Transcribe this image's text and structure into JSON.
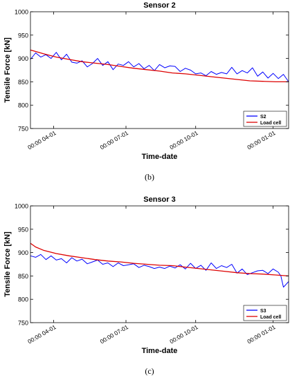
{
  "chart_data": [
    {
      "type": "line",
      "title": "Sensor 2",
      "xlabel": "Time-date",
      "ylabel": "Tensile Force [kN]",
      "ylim": [
        750,
        1000
      ],
      "xlim": [
        0,
        1
      ],
      "yticks": [
        750,
        800,
        850,
        900,
        950,
        1000
      ],
      "xtick_positions": [
        0.09,
        0.37,
        0.64,
        0.94
      ],
      "xtick_labels": [
        "00:00 04-01",
        "00:00 07-01",
        "00:00 10-01",
        "00:00 01-01"
      ],
      "legend_position": "bottom-right",
      "caption": "(b)",
      "series": [
        {
          "name": "S2",
          "color": "#0000ff",
          "x": [
            0.0,
            0.02,
            0.04,
            0.06,
            0.08,
            0.1,
            0.12,
            0.14,
            0.16,
            0.18,
            0.2,
            0.22,
            0.24,
            0.26,
            0.28,
            0.3,
            0.32,
            0.34,
            0.36,
            0.38,
            0.4,
            0.42,
            0.44,
            0.46,
            0.48,
            0.5,
            0.52,
            0.54,
            0.56,
            0.58,
            0.6,
            0.62,
            0.64,
            0.66,
            0.68,
            0.7,
            0.72,
            0.74,
            0.76,
            0.78,
            0.8,
            0.82,
            0.84,
            0.86,
            0.88,
            0.9,
            0.92,
            0.94,
            0.96,
            0.98,
            1.0
          ],
          "y": [
            898,
            912,
            903,
            908,
            900,
            913,
            897,
            909,
            892,
            890,
            895,
            882,
            889,
            900,
            885,
            893,
            876,
            888,
            885,
            893,
            882,
            889,
            878,
            885,
            874,
            887,
            880,
            884,
            883,
            872,
            879,
            875,
            867,
            869,
            863,
            872,
            866,
            870,
            867,
            881,
            867,
            874,
            869,
            880,
            862,
            871,
            858,
            868,
            857,
            866,
            850
          ]
        },
        {
          "name": "Load cell",
          "color": "#dd0000",
          "x": [
            0.0,
            0.05,
            0.1,
            0.15,
            0.2,
            0.25,
            0.3,
            0.35,
            0.4,
            0.45,
            0.5,
            0.55,
            0.6,
            0.65,
            0.7,
            0.75,
            0.8,
            0.85,
            0.9,
            0.95,
            1.0
          ],
          "y": [
            918,
            910,
            903,
            898,
            893,
            890,
            887,
            883,
            879,
            876,
            873,
            869,
            867,
            864,
            861,
            858,
            855,
            852,
            851,
            850,
            850
          ]
        }
      ]
    },
    {
      "type": "line",
      "title": "Sensor 3",
      "xlabel": "Time-date",
      "ylabel": "Tensile Force [kN]",
      "ylim": [
        750,
        1000
      ],
      "xlim": [
        0,
        1
      ],
      "yticks": [
        750,
        800,
        850,
        900,
        950,
        1000
      ],
      "xtick_positions": [
        0.09,
        0.37,
        0.64,
        0.94
      ],
      "xtick_labels": [
        "00:00 04-01",
        "00:00 07-01",
        "00:00 10-01",
        "00:00 01-01"
      ],
      "legend_position": "bottom-right",
      "caption": "(c)",
      "series": [
        {
          "name": "S3",
          "color": "#0000ff",
          "x": [
            0.0,
            0.02,
            0.04,
            0.06,
            0.08,
            0.1,
            0.12,
            0.14,
            0.16,
            0.18,
            0.2,
            0.22,
            0.24,
            0.26,
            0.28,
            0.3,
            0.32,
            0.34,
            0.36,
            0.38,
            0.4,
            0.42,
            0.44,
            0.46,
            0.48,
            0.5,
            0.52,
            0.54,
            0.56,
            0.58,
            0.6,
            0.62,
            0.64,
            0.66,
            0.68,
            0.7,
            0.72,
            0.74,
            0.76,
            0.78,
            0.8,
            0.82,
            0.84,
            0.86,
            0.88,
            0.9,
            0.92,
            0.94,
            0.96,
            0.97,
            0.98,
            0.99,
            1.0
          ],
          "y": [
            893,
            890,
            896,
            885,
            893,
            884,
            887,
            878,
            889,
            882,
            886,
            876,
            880,
            884,
            875,
            878,
            870,
            878,
            872,
            874,
            876,
            868,
            873,
            870,
            866,
            869,
            866,
            871,
            867,
            874,
            865,
            877,
            866,
            873,
            862,
            878,
            866,
            872,
            868,
            875,
            856,
            865,
            853,
            857,
            861,
            862,
            855,
            865,
            858,
            850,
            826,
            832,
            838
          ]
        },
        {
          "name": "Load cell",
          "color": "#dd0000",
          "x": [
            0.0,
            0.02,
            0.05,
            0.1,
            0.15,
            0.2,
            0.25,
            0.3,
            0.35,
            0.4,
            0.45,
            0.5,
            0.55,
            0.6,
            0.65,
            0.7,
            0.75,
            0.8,
            0.85,
            0.9,
            0.95,
            1.0
          ],
          "y": [
            920,
            912,
            905,
            898,
            893,
            889,
            885,
            882,
            880,
            877,
            875,
            873,
            872,
            869,
            866,
            863,
            860,
            857,
            855,
            854,
            852,
            850
          ]
        }
      ]
    }
  ]
}
